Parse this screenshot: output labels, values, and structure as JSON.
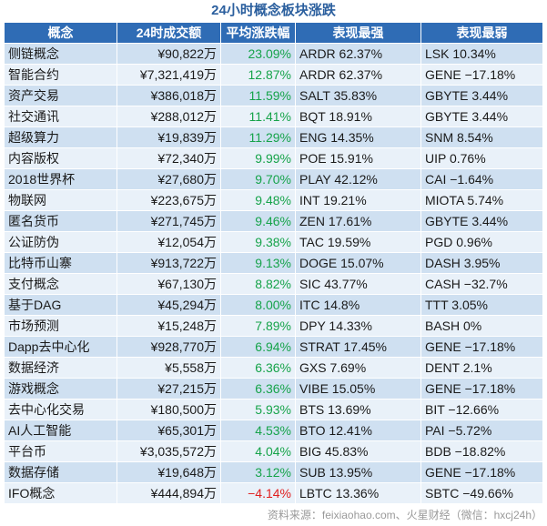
{
  "title": "24小时概念板块涨跌",
  "columns": [
    "概念",
    "24时成交额",
    "平均涨跌幅",
    "表现最强",
    "表现最弱"
  ],
  "rows": [
    {
      "concept": "侧链概念",
      "volume": "¥90,822万",
      "change": "23.09%",
      "dir": "up",
      "best": "ARDR 62.37%",
      "worst": "LSK 10.34%"
    },
    {
      "concept": "智能合约",
      "volume": "¥7,321,419万",
      "change": "12.87%",
      "dir": "up",
      "best": "ARDR 62.37%",
      "worst": "GENE −17.18%"
    },
    {
      "concept": "资产交易",
      "volume": "¥386,018万",
      "change": "11.59%",
      "dir": "up",
      "best": "SALT 35.83%",
      "worst": "GBYTE 3.44%"
    },
    {
      "concept": "社交通讯",
      "volume": "¥288,012万",
      "change": "11.41%",
      "dir": "up",
      "best": "BQT 18.91%",
      "worst": "GBYTE 3.44%"
    },
    {
      "concept": "超级算力",
      "volume": "¥19,839万",
      "change": "11.29%",
      "dir": "up",
      "best": "ENG 14.35%",
      "worst": "SNM 8.54%"
    },
    {
      "concept": "内容版权",
      "volume": "¥72,340万",
      "change": "9.99%",
      "dir": "up",
      "best": "POE 15.91%",
      "worst": "UIP 0.76%"
    },
    {
      "concept": "2018世界杯",
      "volume": "¥27,680万",
      "change": "9.70%",
      "dir": "up",
      "best": "PLAY 42.12%",
      "worst": "CAI −1.64%"
    },
    {
      "concept": "物联网",
      "volume": "¥223,675万",
      "change": "9.48%",
      "dir": "up",
      "best": "INT 19.21%",
      "worst": "MIOTA 5.74%"
    },
    {
      "concept": "匿名货币",
      "volume": "¥271,745万",
      "change": "9.46%",
      "dir": "up",
      "best": "ZEN 17.61%",
      "worst": "GBYTE 3.44%"
    },
    {
      "concept": "公证防伪",
      "volume": "¥12,054万",
      "change": "9.38%",
      "dir": "up",
      "best": "TAC 19.59%",
      "worst": "PGD 0.96%"
    },
    {
      "concept": "比特币山寨",
      "volume": "¥913,722万",
      "change": "9.13%",
      "dir": "up",
      "best": "DOGE 15.07%",
      "worst": "DASH 3.95%"
    },
    {
      "concept": "支付概念",
      "volume": "¥67,130万",
      "change": "8.82%",
      "dir": "up",
      "best": "SIC 43.77%",
      "worst": "CASH −32.7%"
    },
    {
      "concept": "基于DAG",
      "volume": "¥45,294万",
      "change": "8.00%",
      "dir": "up",
      "best": "ITC 14.8%",
      "worst": "TTT 3.05%"
    },
    {
      "concept": "市场预测",
      "volume": "¥15,248万",
      "change": "7.89%",
      "dir": "up",
      "best": "DPY 14.33%",
      "worst": "BASH 0%"
    },
    {
      "concept": "Dapp去中心化",
      "volume": "¥928,770万",
      "change": "6.94%",
      "dir": "up",
      "best": "STRAT 17.45%",
      "worst": "GENE −17.18%"
    },
    {
      "concept": "数据经济",
      "volume": "¥5,558万",
      "change": "6.36%",
      "dir": "up",
      "best": "GXS 7.69%",
      "worst": "DENT 2.1%"
    },
    {
      "concept": "游戏概念",
      "volume": "¥27,215万",
      "change": "6.36%",
      "dir": "up",
      "best": "VIBE 15.05%",
      "worst": "GENE −17.18%"
    },
    {
      "concept": "去中心化交易",
      "volume": "¥180,500万",
      "change": "5.93%",
      "dir": "up",
      "best": "BTS 13.69%",
      "worst": "BIT −12.66%"
    },
    {
      "concept": "AI人工智能",
      "volume": "¥65,301万",
      "change": "4.53%",
      "dir": "up",
      "best": "BTO 12.41%",
      "worst": "PAI −5.72%"
    },
    {
      "concept": "平台币",
      "volume": "¥3,035,572万",
      "change": "4.04%",
      "dir": "up",
      "best": "BIG 45.83%",
      "worst": "BDB −18.82%"
    },
    {
      "concept": "数据存储",
      "volume": "¥19,648万",
      "change": "3.12%",
      "dir": "up",
      "best": "SUB 13.95%",
      "worst": "GENE −17.18%"
    },
    {
      "concept": "IFO概念",
      "volume": "¥444,894万",
      "change": "−4.14%",
      "dir": "down",
      "best": "LBTC 13.36%",
      "worst": "SBTC −49.66%"
    }
  ],
  "footer": "资料来源：feixiaohao.com、火星财经（微信：hxcj24h）",
  "colors": {
    "header": "#2f6cb5",
    "title": "#2b5f9e",
    "up": "#16a34a",
    "down": "#e02020"
  }
}
